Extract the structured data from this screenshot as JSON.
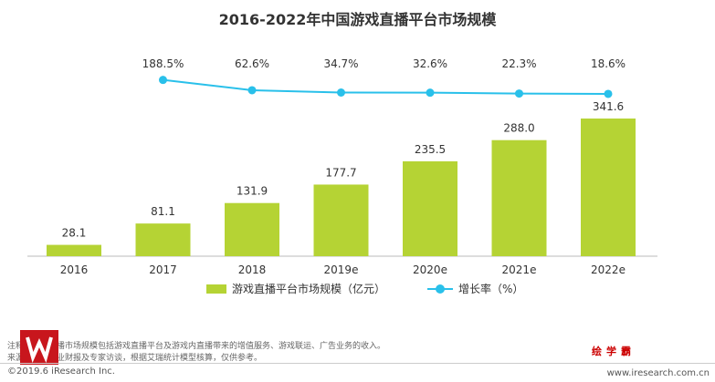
{
  "chart_data": {
    "type": "bar",
    "title": "2016-2022年中国游戏直播平台市场规模",
    "categories": [
      "2016",
      "2017",
      "2018",
      "2019e",
      "2020e",
      "2021e",
      "2022e"
    ],
    "series": [
      {
        "name": "游戏直播平台市场规模（亿元）",
        "type": "bar",
        "values": [
          28.1,
          81.1,
          131.9,
          177.7,
          235.5,
          288.0,
          341.6
        ],
        "labels": [
          "28.1",
          "81.1",
          "131.9",
          "177.7",
          "235.5",
          "288.0",
          "341.6"
        ],
        "color": "#b5d334"
      },
      {
        "name": "增长率（%）",
        "type": "line",
        "values": [
          null,
          188.5,
          62.6,
          34.7,
          32.6,
          22.3,
          18.6
        ],
        "labels": [
          "",
          "188.5%",
          "62.6%",
          "34.7%",
          "32.6%",
          "22.3%",
          "18.6%"
        ],
        "color": "#29c0ea"
      }
    ],
    "legend": "bottom"
  },
  "notes": [
    "注释：游戏直播市场规模包括游戏直播平台及游戏内直播带来的增值服务、游戏联运、广告业务的收入。",
    "来源：综合企业财报及专家访谈，根据艾瑞统计模型核算，仅供参考。"
  ],
  "copyright": "©2019.6 iResearch Inc.",
  "website": "www.iresearch.com.cn",
  "watermark": "绘学霸"
}
